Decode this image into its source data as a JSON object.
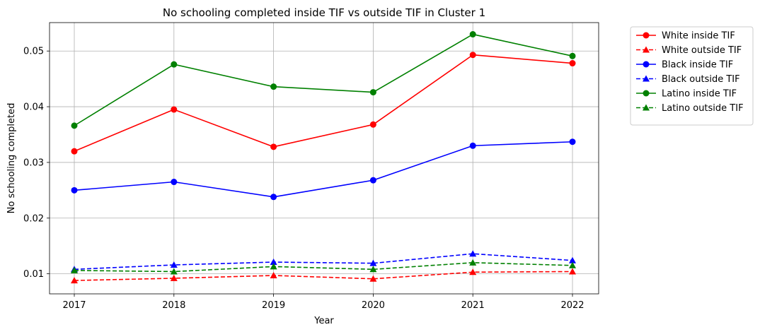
{
  "chart_data": {
    "type": "line",
    "title": "No schooling completed inside TIF vs outside TIF in Cluster 1",
    "xlabel": "Year",
    "ylabel": "No schooling completed",
    "x": [
      2017,
      2018,
      2019,
      2020,
      2021,
      2022
    ],
    "x_tick_labels": [
      "2017",
      "2018",
      "2019",
      "2020",
      "2021",
      "2022"
    ],
    "ylim": [
      0.0064,
      0.0551
    ],
    "y_ticks": [
      0.01,
      0.02,
      0.03,
      0.04,
      0.05
    ],
    "y_tick_labels": [
      "0.01",
      "0.02",
      "0.03",
      "0.04",
      "0.05"
    ],
    "grid": true,
    "legend_position": "outside-right-top",
    "series": [
      {
        "name": "White inside TIF",
        "color": "#ff0000",
        "linestyle": "solid",
        "marker": "circle",
        "values": [
          0.032,
          0.0395,
          0.0328,
          0.0368,
          0.0493,
          0.0478
        ]
      },
      {
        "name": "White outside TIF",
        "color": "#ff0000",
        "linestyle": "dashed",
        "marker": "triangle",
        "values": [
          0.0088,
          0.0092,
          0.0097,
          0.0091,
          0.0103,
          0.0104
        ]
      },
      {
        "name": "Black inside TIF",
        "color": "#0000ff",
        "linestyle": "solid",
        "marker": "circle",
        "values": [
          0.025,
          0.0265,
          0.0238,
          0.0268,
          0.033,
          0.0337
        ]
      },
      {
        "name": "Black outside TIF",
        "color": "#0000ff",
        "linestyle": "dashed",
        "marker": "triangle",
        "values": [
          0.0108,
          0.0116,
          0.0121,
          0.0119,
          0.0136,
          0.0124
        ]
      },
      {
        "name": "Latino inside TIF",
        "color": "#008000",
        "linestyle": "solid",
        "marker": "circle",
        "values": [
          0.0366,
          0.0476,
          0.0436,
          0.0426,
          0.053,
          0.0491
        ]
      },
      {
        "name": "Latino outside TIF",
        "color": "#008000",
        "linestyle": "dashed",
        "marker": "triangle",
        "values": [
          0.0106,
          0.0104,
          0.0113,
          0.0108,
          0.012,
          0.0115
        ]
      }
    ]
  }
}
